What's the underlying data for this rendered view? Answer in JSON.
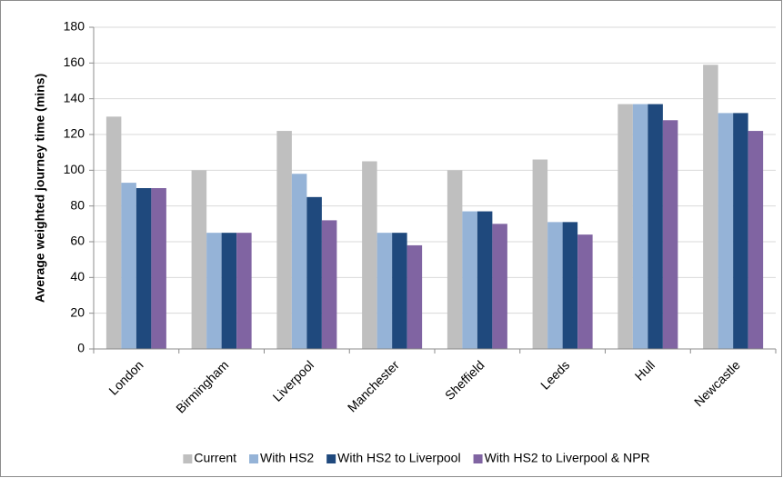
{
  "chart_data": {
    "type": "bar",
    "ylabel": "Average weighted journey time (mins)",
    "categories": [
      "London",
      "Birmingham",
      "Liverpool",
      "Manchester",
      "Sheffield",
      "Leeds",
      "Hull",
      "Newcastle"
    ],
    "series": [
      {
        "name": "Current",
        "color": "#bfbfbf",
        "values": [
          130,
          100,
          122,
          105,
          100,
          106,
          137,
          159
        ]
      },
      {
        "name": "With HS2",
        "color": "#95b3d7",
        "values": [
          93,
          65,
          98,
          65,
          77,
          71,
          137,
          132
        ]
      },
      {
        "name": "With HS2 to Liverpool",
        "color": "#1f497d",
        "values": [
          90,
          65,
          85,
          65,
          77,
          71,
          137,
          132
        ]
      },
      {
        "name": "With HS2 to Liverpool & NPR",
        "color": "#8064a2",
        "values": [
          90,
          65,
          72,
          58,
          70,
          64,
          128,
          122
        ]
      }
    ],
    "ylim": [
      0,
      180
    ],
    "yticks": [
      0,
      20,
      40,
      60,
      80,
      100,
      120,
      140,
      160,
      180
    ],
    "grid": true,
    "legend": "bottom"
  }
}
